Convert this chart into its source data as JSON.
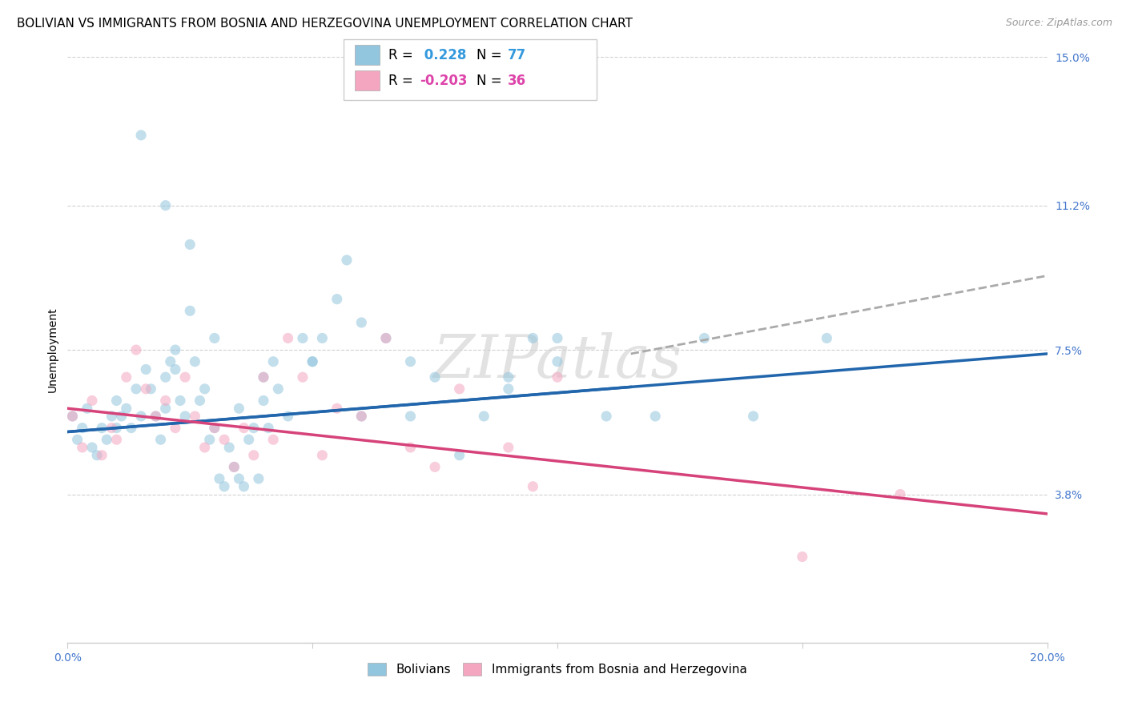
{
  "title": "BOLIVIAN VS IMMIGRANTS FROM BOSNIA AND HERZEGOVINA UNEMPLOYMENT CORRELATION CHART",
  "source": "Source: ZipAtlas.com",
  "ylabel": "Unemployment",
  "xlim": [
    0.0,
    0.2
  ],
  "ylim": [
    0.0,
    0.15
  ],
  "yticks": [
    0.038,
    0.075,
    0.112,
    0.15
  ],
  "ytick_labels": [
    "3.8%",
    "7.5%",
    "11.2%",
    "15.0%"
  ],
  "xticks": [
    0.0,
    0.05,
    0.1,
    0.15,
    0.2
  ],
  "xtick_labels": [
    "0.0%",
    "",
    "",
    "",
    "20.0%"
  ],
  "legend_blue_r": "0.228",
  "legend_blue_n": "77",
  "legend_pink_r": "-0.203",
  "legend_pink_n": "36",
  "blue_color": "#92c5de",
  "pink_color": "#f4a6c0",
  "blue_line_color": "#2166ac",
  "pink_line_color": "#d6437a",
  "dash_color": "#aaaaaa",
  "watermark": "ZIPatlas",
  "blue_points_x": [
    0.001,
    0.002,
    0.003,
    0.004,
    0.005,
    0.006,
    0.007,
    0.008,
    0.009,
    0.01,
    0.01,
    0.011,
    0.012,
    0.013,
    0.014,
    0.015,
    0.016,
    0.017,
    0.018,
    0.019,
    0.02,
    0.02,
    0.021,
    0.022,
    0.022,
    0.023,
    0.024,
    0.025,
    0.026,
    0.027,
    0.028,
    0.029,
    0.03,
    0.031,
    0.032,
    0.033,
    0.034,
    0.035,
    0.036,
    0.037,
    0.038,
    0.039,
    0.04,
    0.041,
    0.042,
    0.043,
    0.045,
    0.048,
    0.05,
    0.052,
    0.055,
    0.057,
    0.06,
    0.065,
    0.07,
    0.075,
    0.08,
    0.085,
    0.09,
    0.095,
    0.1,
    0.11,
    0.12,
    0.13,
    0.015,
    0.02,
    0.025,
    0.03,
    0.035,
    0.04,
    0.05,
    0.06,
    0.07,
    0.09,
    0.1,
    0.14,
    0.155
  ],
  "blue_points_y": [
    0.058,
    0.052,
    0.055,
    0.06,
    0.05,
    0.048,
    0.055,
    0.052,
    0.058,
    0.062,
    0.055,
    0.058,
    0.06,
    0.055,
    0.065,
    0.058,
    0.07,
    0.065,
    0.058,
    0.052,
    0.06,
    0.068,
    0.072,
    0.07,
    0.075,
    0.062,
    0.058,
    0.085,
    0.072,
    0.062,
    0.065,
    0.052,
    0.055,
    0.042,
    0.04,
    0.05,
    0.045,
    0.042,
    0.04,
    0.052,
    0.055,
    0.042,
    0.062,
    0.055,
    0.072,
    0.065,
    0.058,
    0.078,
    0.072,
    0.078,
    0.088,
    0.098,
    0.058,
    0.078,
    0.058,
    0.068,
    0.048,
    0.058,
    0.068,
    0.078,
    0.072,
    0.058,
    0.058,
    0.078,
    0.13,
    0.112,
    0.102,
    0.078,
    0.06,
    0.068,
    0.072,
    0.082,
    0.072,
    0.065,
    0.078,
    0.058,
    0.078
  ],
  "pink_points_x": [
    0.001,
    0.003,
    0.005,
    0.007,
    0.009,
    0.01,
    0.012,
    0.014,
    0.016,
    0.018,
    0.02,
    0.022,
    0.024,
    0.026,
    0.028,
    0.03,
    0.032,
    0.034,
    0.036,
    0.038,
    0.04,
    0.042,
    0.045,
    0.048,
    0.052,
    0.055,
    0.06,
    0.065,
    0.07,
    0.075,
    0.08,
    0.09,
    0.095,
    0.1,
    0.15,
    0.17
  ],
  "pink_points_y": [
    0.058,
    0.05,
    0.062,
    0.048,
    0.055,
    0.052,
    0.068,
    0.075,
    0.065,
    0.058,
    0.062,
    0.055,
    0.068,
    0.058,
    0.05,
    0.055,
    0.052,
    0.045,
    0.055,
    0.048,
    0.068,
    0.052,
    0.078,
    0.068,
    0.048,
    0.06,
    0.058,
    0.078,
    0.05,
    0.045,
    0.065,
    0.05,
    0.04,
    0.068,
    0.022,
    0.038
  ],
  "blue_line_y_start": 0.054,
  "blue_line_y_end": 0.074,
  "pink_line_y_start": 0.06,
  "pink_line_y_end": 0.033,
  "dash_line_x_start": 0.115,
  "dash_line_x_end": 0.2,
  "dash_line_y_start": 0.074,
  "dash_line_y_end": 0.094,
  "background_color": "#ffffff",
  "grid_color": "#cccccc",
  "title_fontsize": 11,
  "axis_label_fontsize": 10,
  "tick_fontsize": 10,
  "marker_size": 90,
  "marker_alpha": 0.55
}
